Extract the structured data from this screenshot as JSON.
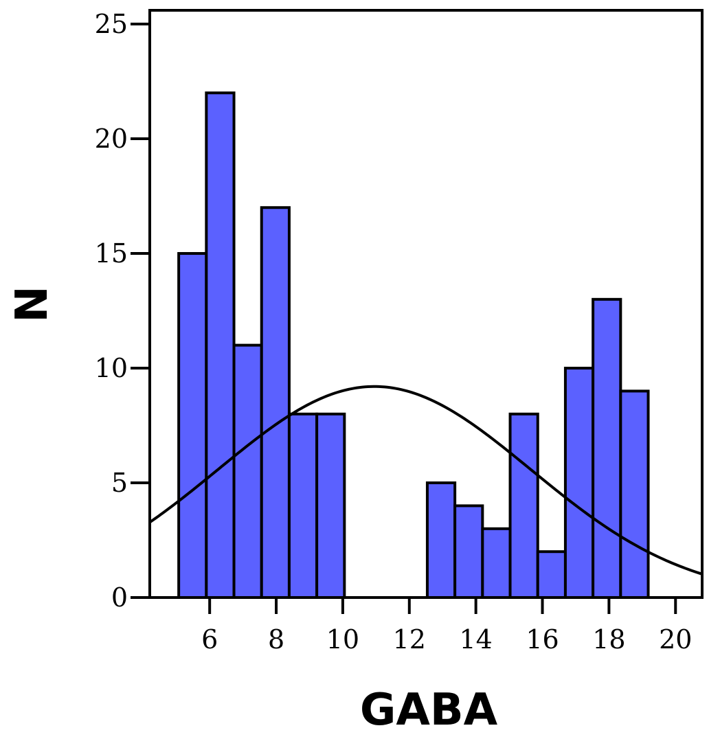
{
  "chart_data": {
    "type": "bar",
    "subtype": "histogram with normal curve overlay",
    "xlabel": "GABA",
    "ylabel": "N",
    "xlim": [
      4.2,
      20.8
    ],
    "ylim": [
      0,
      25.6
    ],
    "x_ticks": [
      6,
      8,
      10,
      12,
      14,
      16,
      18,
      20
    ],
    "y_ticks": [
      0,
      5,
      10,
      15,
      20,
      25
    ],
    "bin_width": 0.83,
    "bins": [
      {
        "x0": 5.07,
        "x1": 5.9,
        "count": 15
      },
      {
        "x0": 5.9,
        "x1": 6.73,
        "count": 22
      },
      {
        "x0": 6.73,
        "x1": 7.56,
        "count": 11
      },
      {
        "x0": 7.56,
        "x1": 8.39,
        "count": 17
      },
      {
        "x0": 8.39,
        "x1": 9.22,
        "count": 8
      },
      {
        "x0": 9.22,
        "x1": 10.05,
        "count": 8
      },
      {
        "x0": 12.54,
        "x1": 13.37,
        "count": 5
      },
      {
        "x0": 13.37,
        "x1": 14.2,
        "count": 4
      },
      {
        "x0": 14.2,
        "x1": 15.03,
        "count": 3
      },
      {
        "x0": 15.03,
        "x1": 15.86,
        "count": 8
      },
      {
        "x0": 15.86,
        "x1": 16.69,
        "count": 2
      },
      {
        "x0": 16.69,
        "x1": 17.52,
        "count": 10
      },
      {
        "x0": 17.52,
        "x1": 18.35,
        "count": 13
      },
      {
        "x0": 18.35,
        "x1": 19.18,
        "count": 9
      }
    ],
    "normal_curve": {
      "mean": 10.95,
      "sd": 4.7,
      "peak": 9.2
    },
    "bar_color": "#5b61ff",
    "edge_color": "#000000",
    "curve_color": "#000000",
    "grid": false,
    "legend": "none"
  }
}
